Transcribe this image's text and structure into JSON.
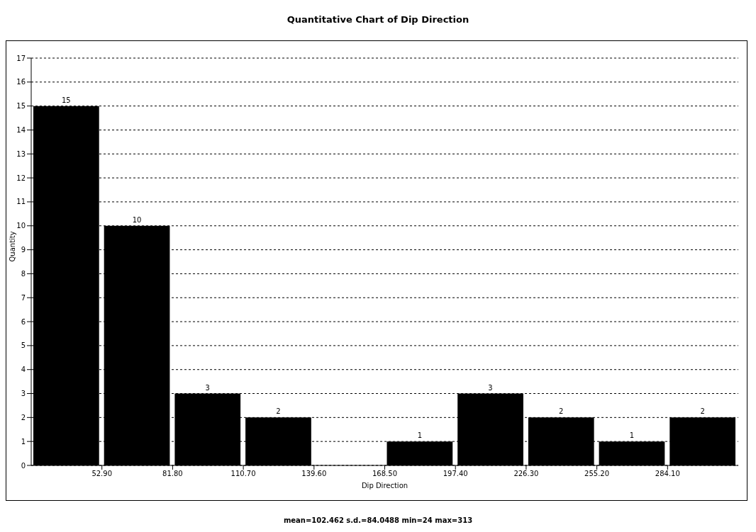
{
  "chart_data": {
    "type": "histogram",
    "title": "Quantitative Chart of Dip Direction",
    "xlabel": "Dip Direction",
    "ylabel": "Quantity",
    "bins": [
      24,
      52.9,
      81.8,
      110.7,
      139.6,
      168.5,
      197.4,
      226.3,
      255.2,
      284.1,
      313
    ],
    "values": [
      15,
      10,
      3,
      2,
      0,
      1,
      3,
      2,
      1,
      2
    ],
    "value_labels": [
      "15",
      "10",
      "3",
      "2",
      null,
      "1",
      "3",
      "2",
      "1",
      "2"
    ],
    "color": "#000000",
    "xlim": [
      24,
      313
    ],
    "xticks": [
      {
        "value": 52.9,
        "label": "52.90"
      },
      {
        "value": 81.8,
        "label": "81.80"
      },
      {
        "value": 110.7,
        "label": "110.70"
      },
      {
        "value": 139.6,
        "label": "139.60"
      },
      {
        "value": 168.5,
        "label": "168.50"
      },
      {
        "value": 197.4,
        "label": "197.40"
      },
      {
        "value": 226.3,
        "label": "226.30"
      },
      {
        "value": 255.2,
        "label": "255.20"
      },
      {
        "value": 284.1,
        "label": "284.10"
      }
    ],
    "ylim": [
      0,
      17
    ],
    "yticks": [
      0,
      1,
      2,
      3,
      4,
      5,
      6,
      7,
      8,
      9,
      10,
      11,
      12,
      13,
      14,
      15,
      16,
      17
    ],
    "grid": "y",
    "annotations": [
      "mean=102.462 s.d.=84.0488 min=24 max=313"
    ]
  }
}
